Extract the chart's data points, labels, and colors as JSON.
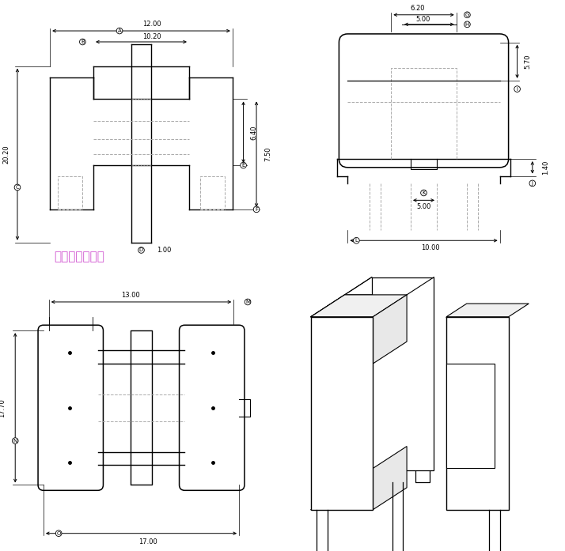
{
  "bg_color": "#ffffff",
  "lc": "#000000",
  "dc": "#aaaaaa",
  "wm_color": "#cc44cc",
  "wm_text": "琴江涡电子商场",
  "dims": {
    "A": "12.00",
    "B": "10.20",
    "C": "20.20",
    "D": "1.00",
    "E": "6.40",
    "F": "7.50",
    "G": "6.20",
    "H": "5.00",
    "I": "5.70",
    "J": "1.40",
    "K": "5.00",
    "L": "10.00",
    "M": "13.00",
    "N": "17.70",
    "O": "17.00"
  }
}
